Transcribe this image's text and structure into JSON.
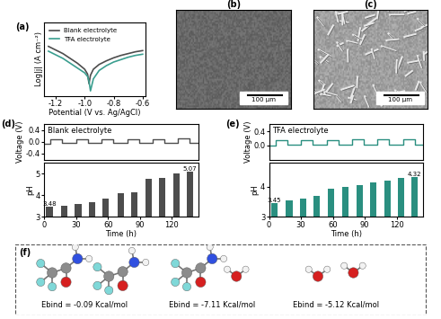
{
  "chart_data": [
    {
      "type": "line",
      "title": "(a)",
      "x_label": "Potential (V vs. Ag/AgCl)",
      "y_label": "Log|j| (A cm⁻²)",
      "x": [
        -1.25,
        -1.2,
        -1.15,
        -1.1,
        -1.05,
        -1.0,
        -0.98,
        -0.97,
        -0.96,
        -0.94,
        -0.9,
        -0.85,
        -0.8,
        -0.75,
        -0.7,
        -0.65,
        -0.6
      ],
      "series": [
        {
          "name": "Blank electrolyte",
          "color": "#4d4d4d",
          "values": [
            -1.5,
            -1.8,
            -2.1,
            -2.5,
            -2.9,
            -3.4,
            -3.8,
            -4.6,
            -3.9,
            -3.4,
            -3.0,
            -2.7,
            -2.45,
            -2.25,
            -2.1,
            -1.95,
            -1.85
          ]
        },
        {
          "name": "TFA electrolyte",
          "color": "#3a9e8f",
          "values": [
            -1.9,
            -2.2,
            -2.5,
            -2.9,
            -3.3,
            -3.7,
            -4.0,
            -4.4,
            -5.2,
            -4.2,
            -3.5,
            -3.1,
            -2.8,
            -2.6,
            -2.4,
            -2.25,
            -2.15
          ]
        }
      ],
      "xlim": [
        -1.28,
        -0.58
      ],
      "xticks": [
        -1.2,
        -1.0,
        -0.8,
        -0.6
      ],
      "ylim": [
        -5.6,
        0.5
      ],
      "tick_labels": "x",
      "legend": "upper left"
    },
    {
      "type": "line",
      "title": "(d)",
      "y_label": "Voltage (V)",
      "annotations": [
        "Blank electrolyte"
      ],
      "x": [
        0,
        6,
        17,
        30,
        41,
        54,
        65,
        78,
        89,
        102,
        113,
        126,
        137,
        145
      ],
      "values": [
        -0.05,
        0.08,
        -0.02,
        0.09,
        -0.02,
        0.1,
        -0.02,
        0.1,
        -0.03,
        0.1,
        -0.03,
        0.12,
        -0.02,
        -0.02
      ],
      "color": "#4d4d4d",
      "xlim": [
        0,
        145
      ],
      "ylim": [
        -0.6,
        0.6
      ],
      "yticks": [
        -0.4,
        0.0,
        0.4
      ],
      "tick_labels": "y"
    },
    {
      "type": "bar",
      "x_label": "Time (h)",
      "y_label": "pH",
      "x": [
        5,
        19,
        32,
        45,
        58,
        72,
        85,
        98,
        111,
        124,
        137
      ],
      "values": [
        3.48,
        3.5,
        3.6,
        3.7,
        3.85,
        4.1,
        4.15,
        4.75,
        4.8,
        5.0,
        5.07
      ],
      "value_labels": [
        "3.48",
        null,
        null,
        null,
        null,
        null,
        null,
        null,
        null,
        null,
        "5.07"
      ],
      "color": "#4d4d4d",
      "xlim": [
        0,
        145
      ],
      "xticks": [
        0,
        30,
        60,
        90,
        120
      ],
      "ylim": [
        3,
        5.5
      ],
      "yticks": [
        3,
        4,
        5
      ]
    },
    {
      "type": "line",
      "title": "(e)",
      "y_label": "Voltage (V)",
      "annotations": [
        "TFA electrolyte"
      ],
      "x": [
        0,
        6,
        17,
        30,
        41,
        54,
        65,
        78,
        89,
        102,
        113,
        126,
        137,
        145
      ],
      "values": [
        0.0,
        0.14,
        0.02,
        0.16,
        0.03,
        0.16,
        0.03,
        0.17,
        0.03,
        0.17,
        0.03,
        0.18,
        0.03,
        0.03
      ],
      "color": "#2a8f80",
      "xlim": [
        0,
        145
      ],
      "ylim": [
        -0.4,
        0.6
      ],
      "yticks": [
        0.0,
        0.4
      ],
      "tick_labels": "y"
    },
    {
      "type": "bar",
      "x_label": "Time (h)",
      "y_label": "pH",
      "x": [
        5,
        19,
        32,
        45,
        58,
        72,
        85,
        98,
        111,
        124,
        137
      ],
      "values": [
        3.45,
        3.55,
        3.6,
        3.7,
        3.95,
        4.0,
        4.05,
        4.15,
        4.2,
        4.3,
        4.32
      ],
      "value_labels": [
        "3.45",
        null,
        null,
        null,
        null,
        null,
        null,
        null,
        null,
        null,
        "4.32"
      ],
      "color": "#2a8f80",
      "xlim": [
        0,
        145
      ],
      "xticks": [
        0,
        30,
        60,
        90,
        120
      ],
      "ylim": [
        3,
        4.8
      ],
      "yticks": [
        3,
        4
      ]
    }
  ],
  "images": [
    {
      "title": "(b)",
      "scale_bar": "100 μm"
    },
    {
      "title": "(c)",
      "scale_bar": "100 μm"
    }
  ],
  "molecules": {
    "title": "(f)",
    "binding_energies": [
      "Ebind = -0.09 Kcal/mol",
      "Ebind = -7.11 Kcal/mol",
      "Ebind = -5.12 Kcal/mol"
    ]
  }
}
